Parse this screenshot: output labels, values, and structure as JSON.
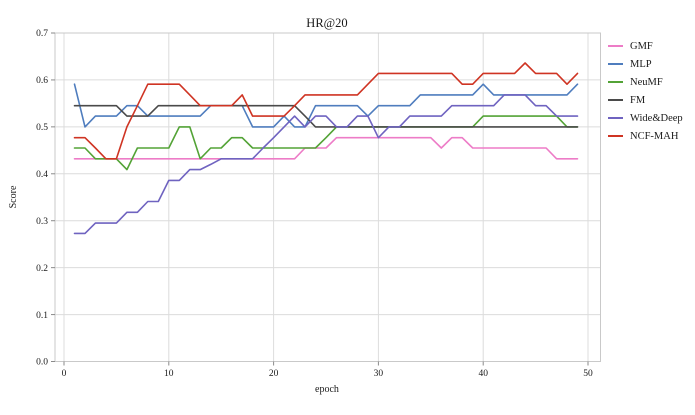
{
  "title": "HR@20",
  "chart_data": {
    "type": "line",
    "title": "HR@20",
    "xlabel": "epoch",
    "ylabel": "Score",
    "xlim": [
      0,
      50
    ],
    "ylim": [
      0,
      0.7
    ],
    "xticks": [
      0,
      10,
      20,
      30,
      40,
      50
    ],
    "yticks": [
      0.0,
      0.1,
      0.2,
      0.3,
      0.4,
      0.5,
      0.6,
      0.7
    ],
    "grid": true,
    "legend_position": "right",
    "x": [
      1,
      2,
      3,
      4,
      5,
      6,
      7,
      8,
      9,
      10,
      11,
      12,
      13,
      14,
      15,
      16,
      17,
      18,
      19,
      20,
      21,
      22,
      23,
      24,
      25,
      26,
      27,
      28,
      29,
      30,
      31,
      32,
      33,
      34,
      35,
      36,
      37,
      38,
      39,
      40,
      41,
      42,
      43,
      44,
      45,
      46,
      47,
      48,
      49
    ],
    "series": [
      {
        "name": "GMF",
        "color": "#ed7cc7",
        "values": [
          0.432,
          0.432,
          0.432,
          0.432,
          0.432,
          0.432,
          0.432,
          0.432,
          0.432,
          0.432,
          0.432,
          0.432,
          0.432,
          0.432,
          0.432,
          0.432,
          0.432,
          0.432,
          0.432,
          0.432,
          0.432,
          0.432,
          0.455,
          0.455,
          0.455,
          0.477,
          0.477,
          0.477,
          0.477,
          0.477,
          0.477,
          0.477,
          0.477,
          0.477,
          0.477,
          0.455,
          0.477,
          0.477,
          0.455,
          0.455,
          0.455,
          0.455,
          0.455,
          0.455,
          0.455,
          0.455,
          0.432,
          0.432,
          0.432
        ]
      },
      {
        "name": "MLP",
        "color": "#4f7dbe",
        "values": [
          0.591,
          0.5,
          0.523,
          0.523,
          0.523,
          0.545,
          0.545,
          0.523,
          0.523,
          0.523,
          0.523,
          0.523,
          0.523,
          0.545,
          0.545,
          0.545,
          0.545,
          0.5,
          0.5,
          0.5,
          0.523,
          0.5,
          0.5,
          0.545,
          0.545,
          0.545,
          0.545,
          0.545,
          0.523,
          0.545,
          0.545,
          0.545,
          0.545,
          0.568,
          0.568,
          0.568,
          0.568,
          0.568,
          0.568,
          0.591,
          0.568,
          0.568,
          0.568,
          0.568,
          0.568,
          0.568,
          0.568,
          0.568,
          0.591
        ]
      },
      {
        "name": "NeuMF",
        "color": "#53a336",
        "values": [
          0.455,
          0.455,
          0.432,
          0.432,
          0.432,
          0.409,
          0.455,
          0.455,
          0.455,
          0.455,
          0.5,
          0.5,
          0.432,
          0.455,
          0.455,
          0.477,
          0.477,
          0.455,
          0.455,
          0.455,
          0.455,
          0.455,
          0.455,
          0.455,
          0.477,
          0.5,
          0.5,
          0.5,
          0.5,
          0.5,
          0.5,
          0.5,
          0.5,
          0.5,
          0.5,
          0.5,
          0.5,
          0.5,
          0.5,
          0.523,
          0.523,
          0.523,
          0.523,
          0.523,
          0.523,
          0.523,
          0.523,
          0.5,
          0.5
        ]
      },
      {
        "name": "FM",
        "color": "#4a4a4a",
        "values": [
          0.545,
          0.545,
          0.545,
          0.545,
          0.545,
          0.523,
          0.523,
          0.523,
          0.545,
          0.545,
          0.545,
          0.545,
          0.545,
          0.545,
          0.545,
          0.545,
          0.545,
          0.545,
          0.545,
          0.545,
          0.545,
          0.545,
          0.523,
          0.5,
          0.5,
          0.5,
          0.5,
          0.5,
          0.5,
          0.5,
          0.5,
          0.5,
          0.5,
          0.5,
          0.5,
          0.5,
          0.5,
          0.5,
          0.5,
          0.5,
          0.5,
          0.5,
          0.5,
          0.5,
          0.5,
          0.5,
          0.5,
          0.5,
          0.5
        ]
      },
      {
        "name": "Wide&Deep",
        "color": "#6f63c0",
        "values": [
          0.273,
          0.273,
          0.295,
          0.295,
          0.295,
          0.318,
          0.318,
          0.341,
          0.341,
          0.386,
          0.386,
          0.409,
          0.409,
          0.42,
          0.432,
          0.432,
          0.432,
          0.432,
          0.455,
          0.477,
          0.5,
          0.523,
          0.5,
          0.523,
          0.523,
          0.5,
          0.5,
          0.523,
          0.523,
          0.477,
          0.5,
          0.5,
          0.523,
          0.523,
          0.523,
          0.523,
          0.545,
          0.545,
          0.545,
          0.545,
          0.545,
          0.568,
          0.568,
          0.568,
          0.545,
          0.545,
          0.523,
          0.523,
          0.523
        ]
      },
      {
        "name": "NCF-MAH",
        "color": "#cf3423",
        "values": [
          0.477,
          0.477,
          0.455,
          0.432,
          0.432,
          0.5,
          0.545,
          0.591,
          0.591,
          0.591,
          0.591,
          0.568,
          0.545,
          0.545,
          0.545,
          0.545,
          0.568,
          0.523,
          0.523,
          0.523,
          0.523,
          0.545,
          0.568,
          0.568,
          0.568,
          0.568,
          0.568,
          0.568,
          0.591,
          0.614,
          0.614,
          0.614,
          0.614,
          0.614,
          0.614,
          0.614,
          0.614,
          0.591,
          0.591,
          0.614,
          0.614,
          0.614,
          0.614,
          0.636,
          0.614,
          0.614,
          0.614,
          0.591,
          0.614
        ]
      }
    ]
  },
  "style": {
    "grid_color": "#dcdcdc",
    "border_color": "#c9c9c9",
    "tick_color": "#8a8a8a",
    "text_color": "#1a1a1a"
  }
}
